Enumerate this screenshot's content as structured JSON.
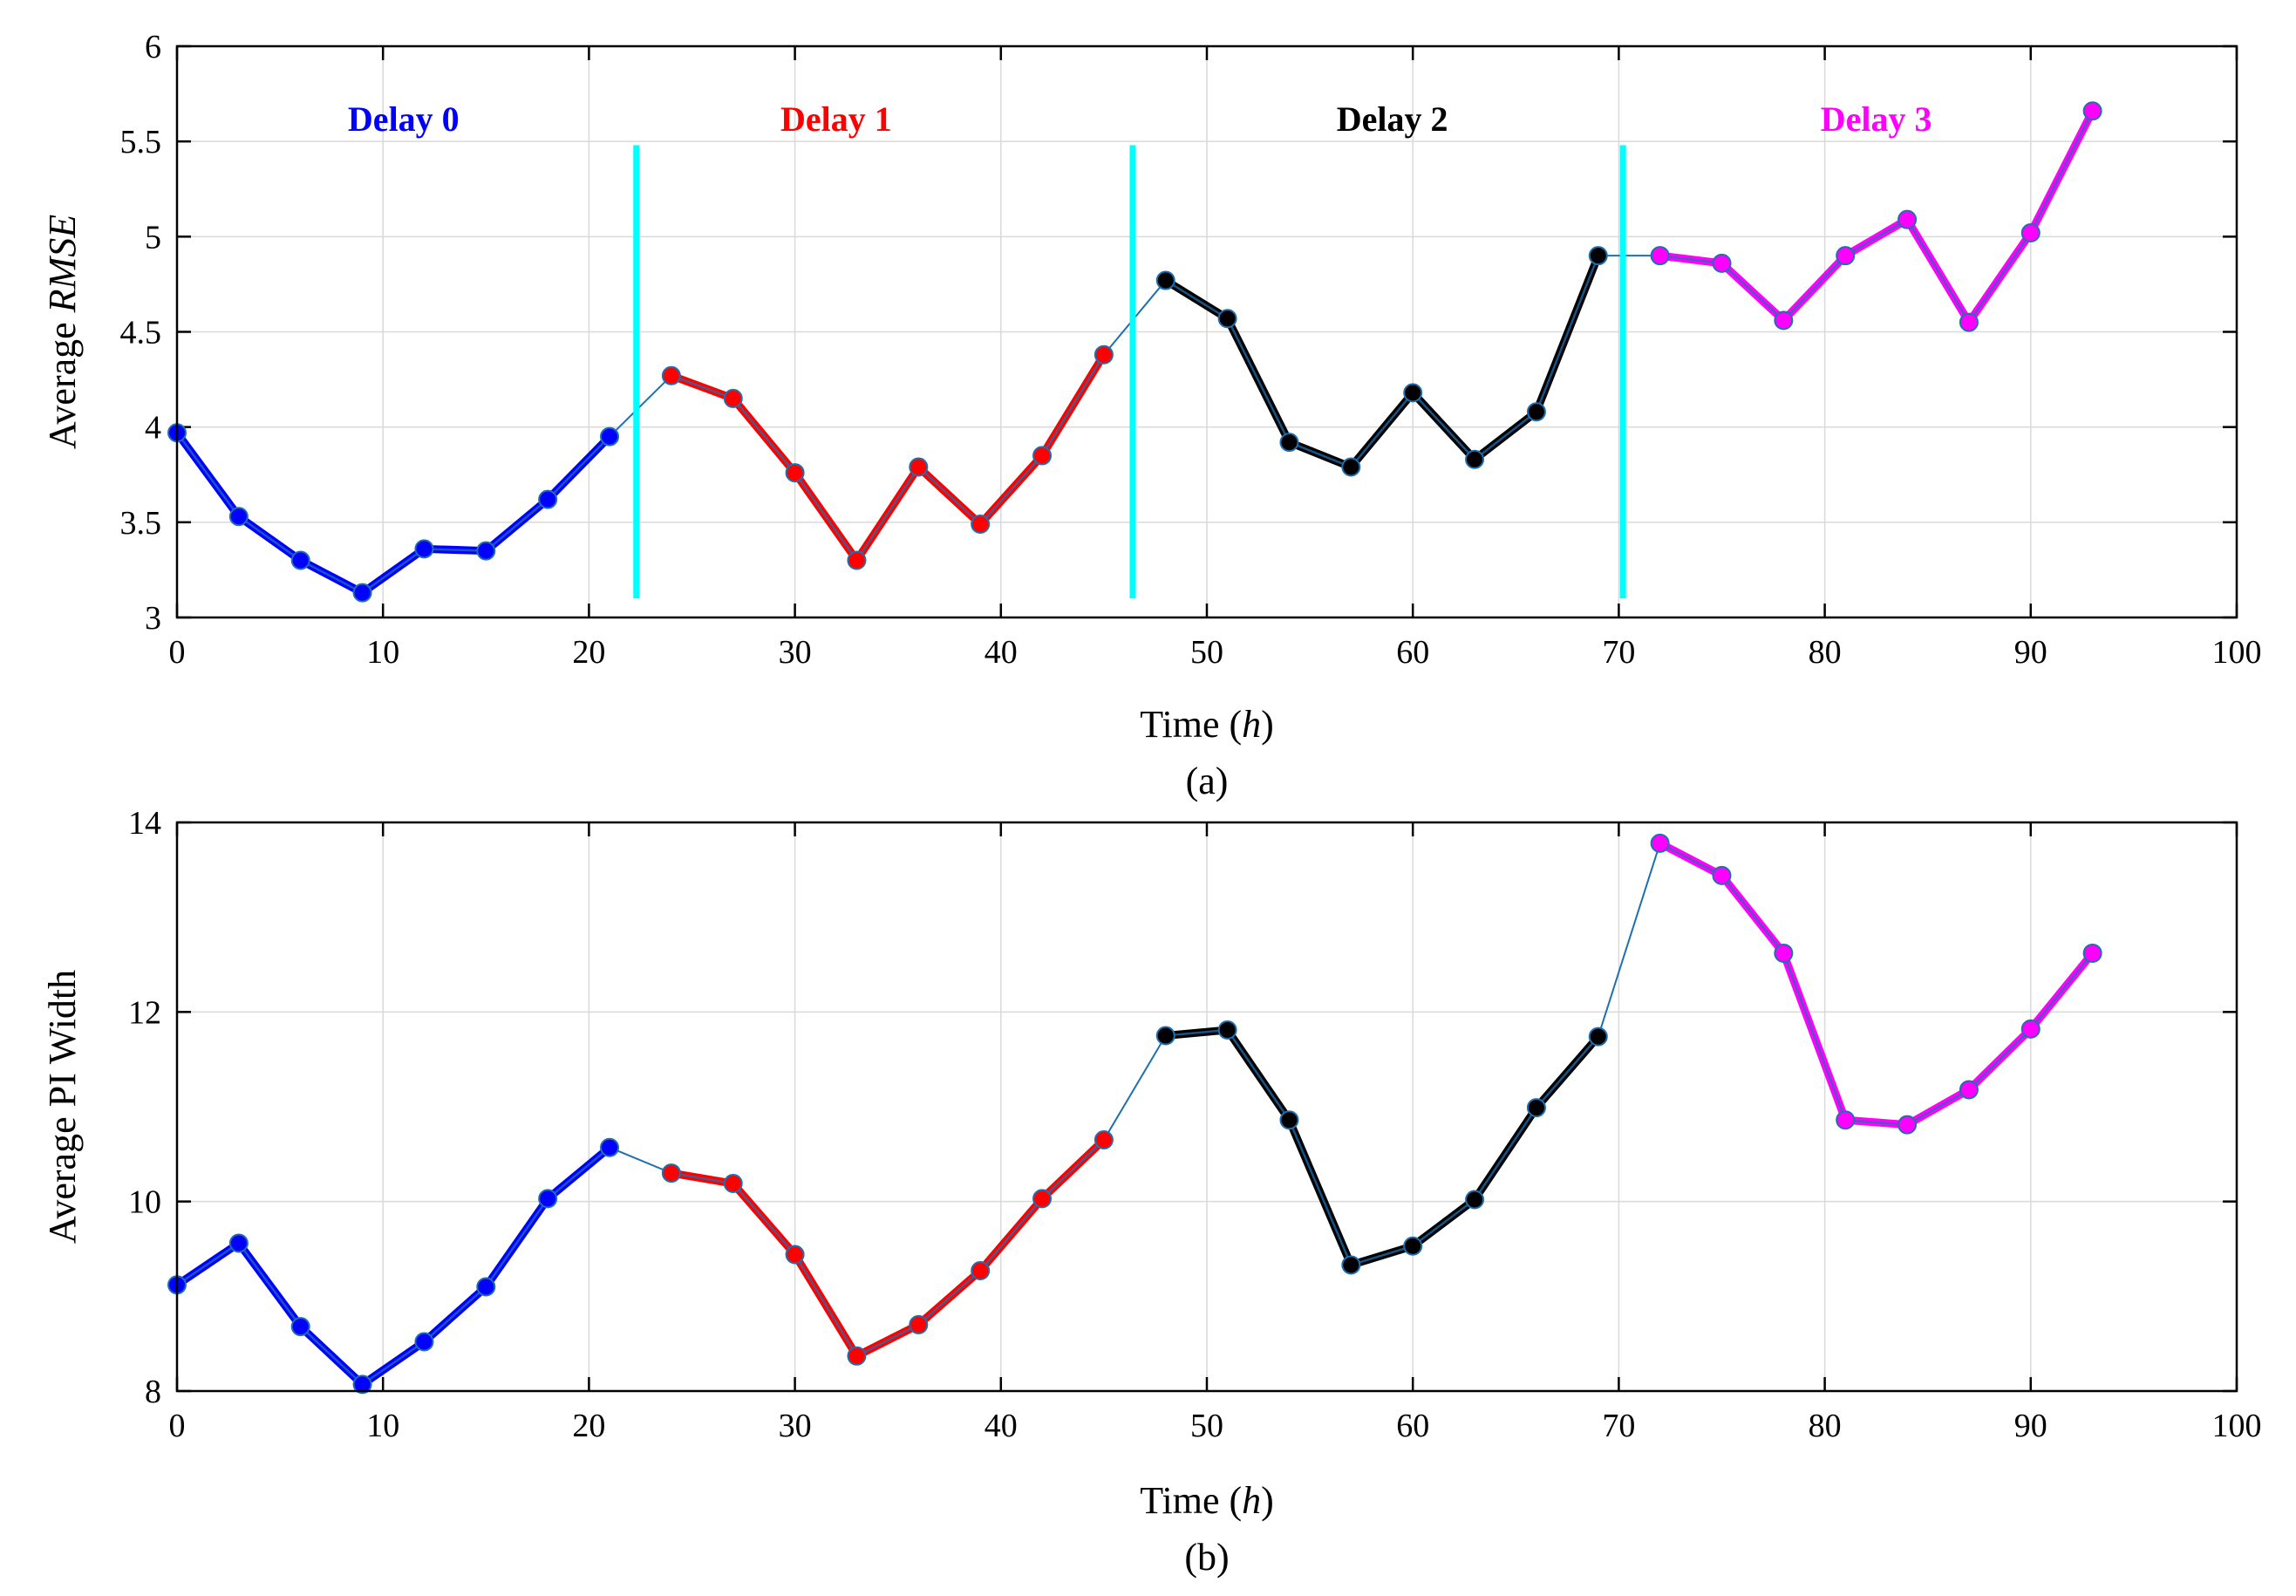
{
  "colors": {
    "delay0": "#0000ff",
    "delay1": "#ff0000",
    "delay2": "#000000",
    "delay3": "#ff00ff",
    "overlay": "#1f6fb0",
    "divider": "#00ffff"
  },
  "chart_data": [
    {
      "id": "a",
      "type": "line",
      "caption": "(a)",
      "title": "",
      "xlabel_pre": "Time (",
      "xlabel_var": "h",
      "xlabel_post": ")",
      "ylabel_pre": "Average ",
      "ylabel_var": "RMSE",
      "xlim": [
        0,
        100
      ],
      "ylim": [
        3,
        6
      ],
      "xticks": [
        0,
        10,
        20,
        30,
        40,
        50,
        60,
        70,
        80,
        90,
        100
      ],
      "yticks": [
        3,
        3.5,
        4,
        4.5,
        5,
        5.5,
        6
      ],
      "ytick_labels": [
        "3",
        "3.5",
        "4",
        "4.5",
        "5",
        "5.5",
        "6"
      ],
      "grid": true,
      "dividers": [
        {
          "x": 22.3,
          "y": [
            3.1,
            5.48
          ]
        },
        {
          "x": 46.4,
          "y": [
            3.1,
            5.48
          ]
        },
        {
          "x": 70.2,
          "y": [
            3.1,
            5.48
          ]
        }
      ],
      "series": [
        {
          "name": "Delay 0",
          "color_key": "delay0",
          "label_x": 11,
          "label_y": 5.62,
          "x": [
            0,
            3,
            6,
            9,
            12,
            15,
            18,
            21
          ],
          "y": [
            3.97,
            3.53,
            3.3,
            3.13,
            3.36,
            3.35,
            3.62,
            3.95
          ]
        },
        {
          "name": "Delay 1",
          "color_key": "delay1",
          "label_x": 32,
          "label_y": 5.62,
          "x": [
            24,
            27,
            30,
            33,
            36,
            39,
            42,
            45
          ],
          "y": [
            4.27,
            4.15,
            3.76,
            3.3,
            3.79,
            3.49,
            3.85,
            4.38
          ]
        },
        {
          "name": "Delay 2",
          "color_key": "delay2",
          "label_x": 59,
          "label_y": 5.62,
          "x": [
            48,
            51,
            54,
            57,
            60,
            63,
            66,
            69
          ],
          "y": [
            4.77,
            4.57,
            3.92,
            3.79,
            4.18,
            3.83,
            4.08,
            4.9
          ]
        },
        {
          "name": "Delay 3",
          "color_key": "delay3",
          "label_x": 82.5,
          "label_y": 5.62,
          "x": [
            72,
            75,
            78,
            81,
            84,
            87,
            90,
            93
          ],
          "y": [
            4.9,
            4.86,
            4.56,
            4.9,
            5.09,
            4.55,
            5.02,
            5.66
          ]
        }
      ]
    },
    {
      "id": "b",
      "type": "line",
      "caption": "(b)",
      "title": "",
      "xlabel_pre": "Time (",
      "xlabel_var": "h",
      "xlabel_post": ")",
      "ylabel_pre": "Average PI Width",
      "ylabel_var": "",
      "xlim": [
        0,
        100
      ],
      "ylim": [
        8,
        14
      ],
      "xticks": [
        0,
        10,
        20,
        30,
        40,
        50,
        60,
        70,
        80,
        90,
        100
      ],
      "yticks": [
        8,
        10,
        12,
        14
      ],
      "ytick_labels": [
        "8",
        "10",
        "12",
        "14"
      ],
      "grid": true,
      "dividers": [],
      "series": [
        {
          "name": "Delay 0",
          "color_key": "delay0",
          "x": [
            0,
            3,
            6,
            9,
            12,
            15,
            18,
            21
          ],
          "y": [
            9.12,
            9.56,
            8.68,
            8.07,
            8.52,
            9.1,
            10.03,
            10.57
          ]
        },
        {
          "name": "Delay 1",
          "color_key": "delay1",
          "x": [
            24,
            27,
            30,
            33,
            36,
            39,
            42,
            45
          ],
          "y": [
            10.3,
            10.19,
            9.44,
            8.37,
            8.7,
            9.27,
            10.03,
            10.65
          ]
        },
        {
          "name": "Delay 2",
          "color_key": "delay2",
          "x": [
            48,
            51,
            54,
            57,
            60,
            63,
            66,
            69
          ],
          "y": [
            11.75,
            11.81,
            10.86,
            9.33,
            9.53,
            10.02,
            10.99,
            11.74
          ]
        },
        {
          "name": "Delay 3",
          "color_key": "delay3",
          "x": [
            72,
            75,
            78,
            81,
            84,
            87,
            90,
            93
          ],
          "y": [
            13.78,
            13.44,
            12.62,
            10.86,
            10.81,
            11.18,
            11.82,
            12.62
          ]
        }
      ]
    }
  ]
}
